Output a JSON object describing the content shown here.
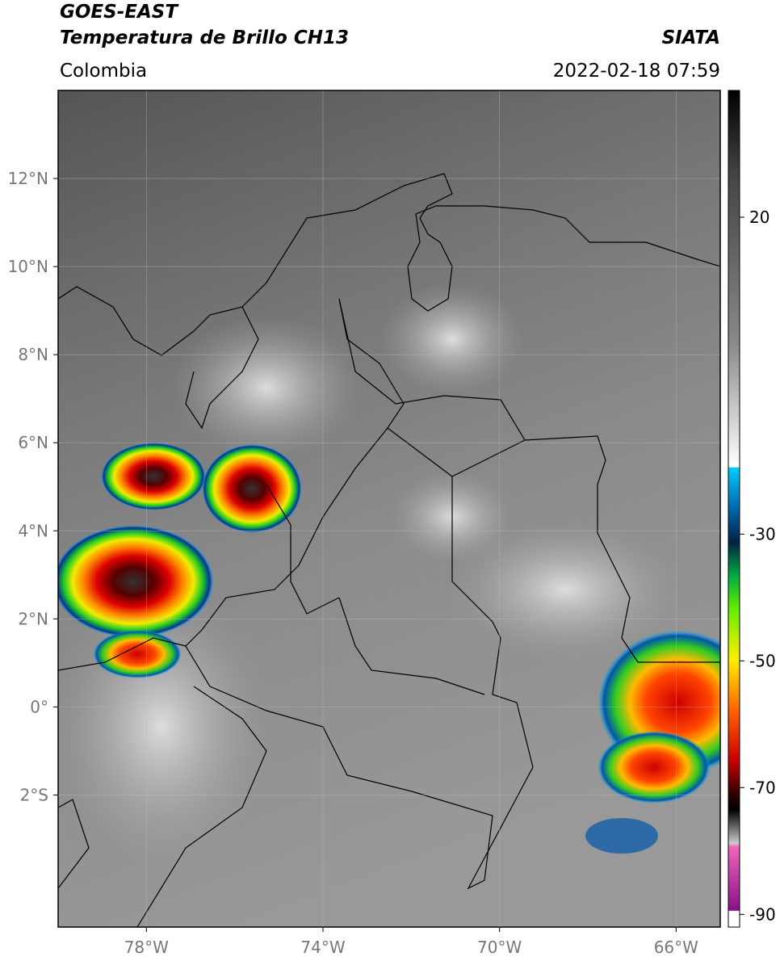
{
  "header": {
    "title_line1": "GOES-EAST",
    "title_line2": "Temperatura de Brillo CH13",
    "region": "Colombia",
    "source": "SIATA",
    "datetime": "2022-02-18 07:59"
  },
  "map": {
    "xlim": [
      -80,
      -65
    ],
    "ylim": [
      -5,
      14
    ],
    "xticks": [
      {
        "value": -78,
        "label": "78°W"
      },
      {
        "value": -74,
        "label": "74°W"
      },
      {
        "value": -70,
        "label": "70°W"
      },
      {
        "value": -66,
        "label": "66°W"
      }
    ],
    "yticks": [
      {
        "value": 12,
        "label": "12°N"
      },
      {
        "value": 10,
        "label": "10°N"
      },
      {
        "value": 8,
        "label": "8°N"
      },
      {
        "value": 6,
        "label": "6°N"
      },
      {
        "value": 4,
        "label": "4°N"
      },
      {
        "value": 2,
        "label": "2°N"
      },
      {
        "value": 0,
        "label": "0°"
      },
      {
        "value": -2,
        "label": "2°S"
      }
    ]
  },
  "colorbar": {
    "lim": [
      -92,
      40
    ],
    "ticks": [
      20,
      -30,
      -50,
      -70,
      -90
    ]
  }
}
